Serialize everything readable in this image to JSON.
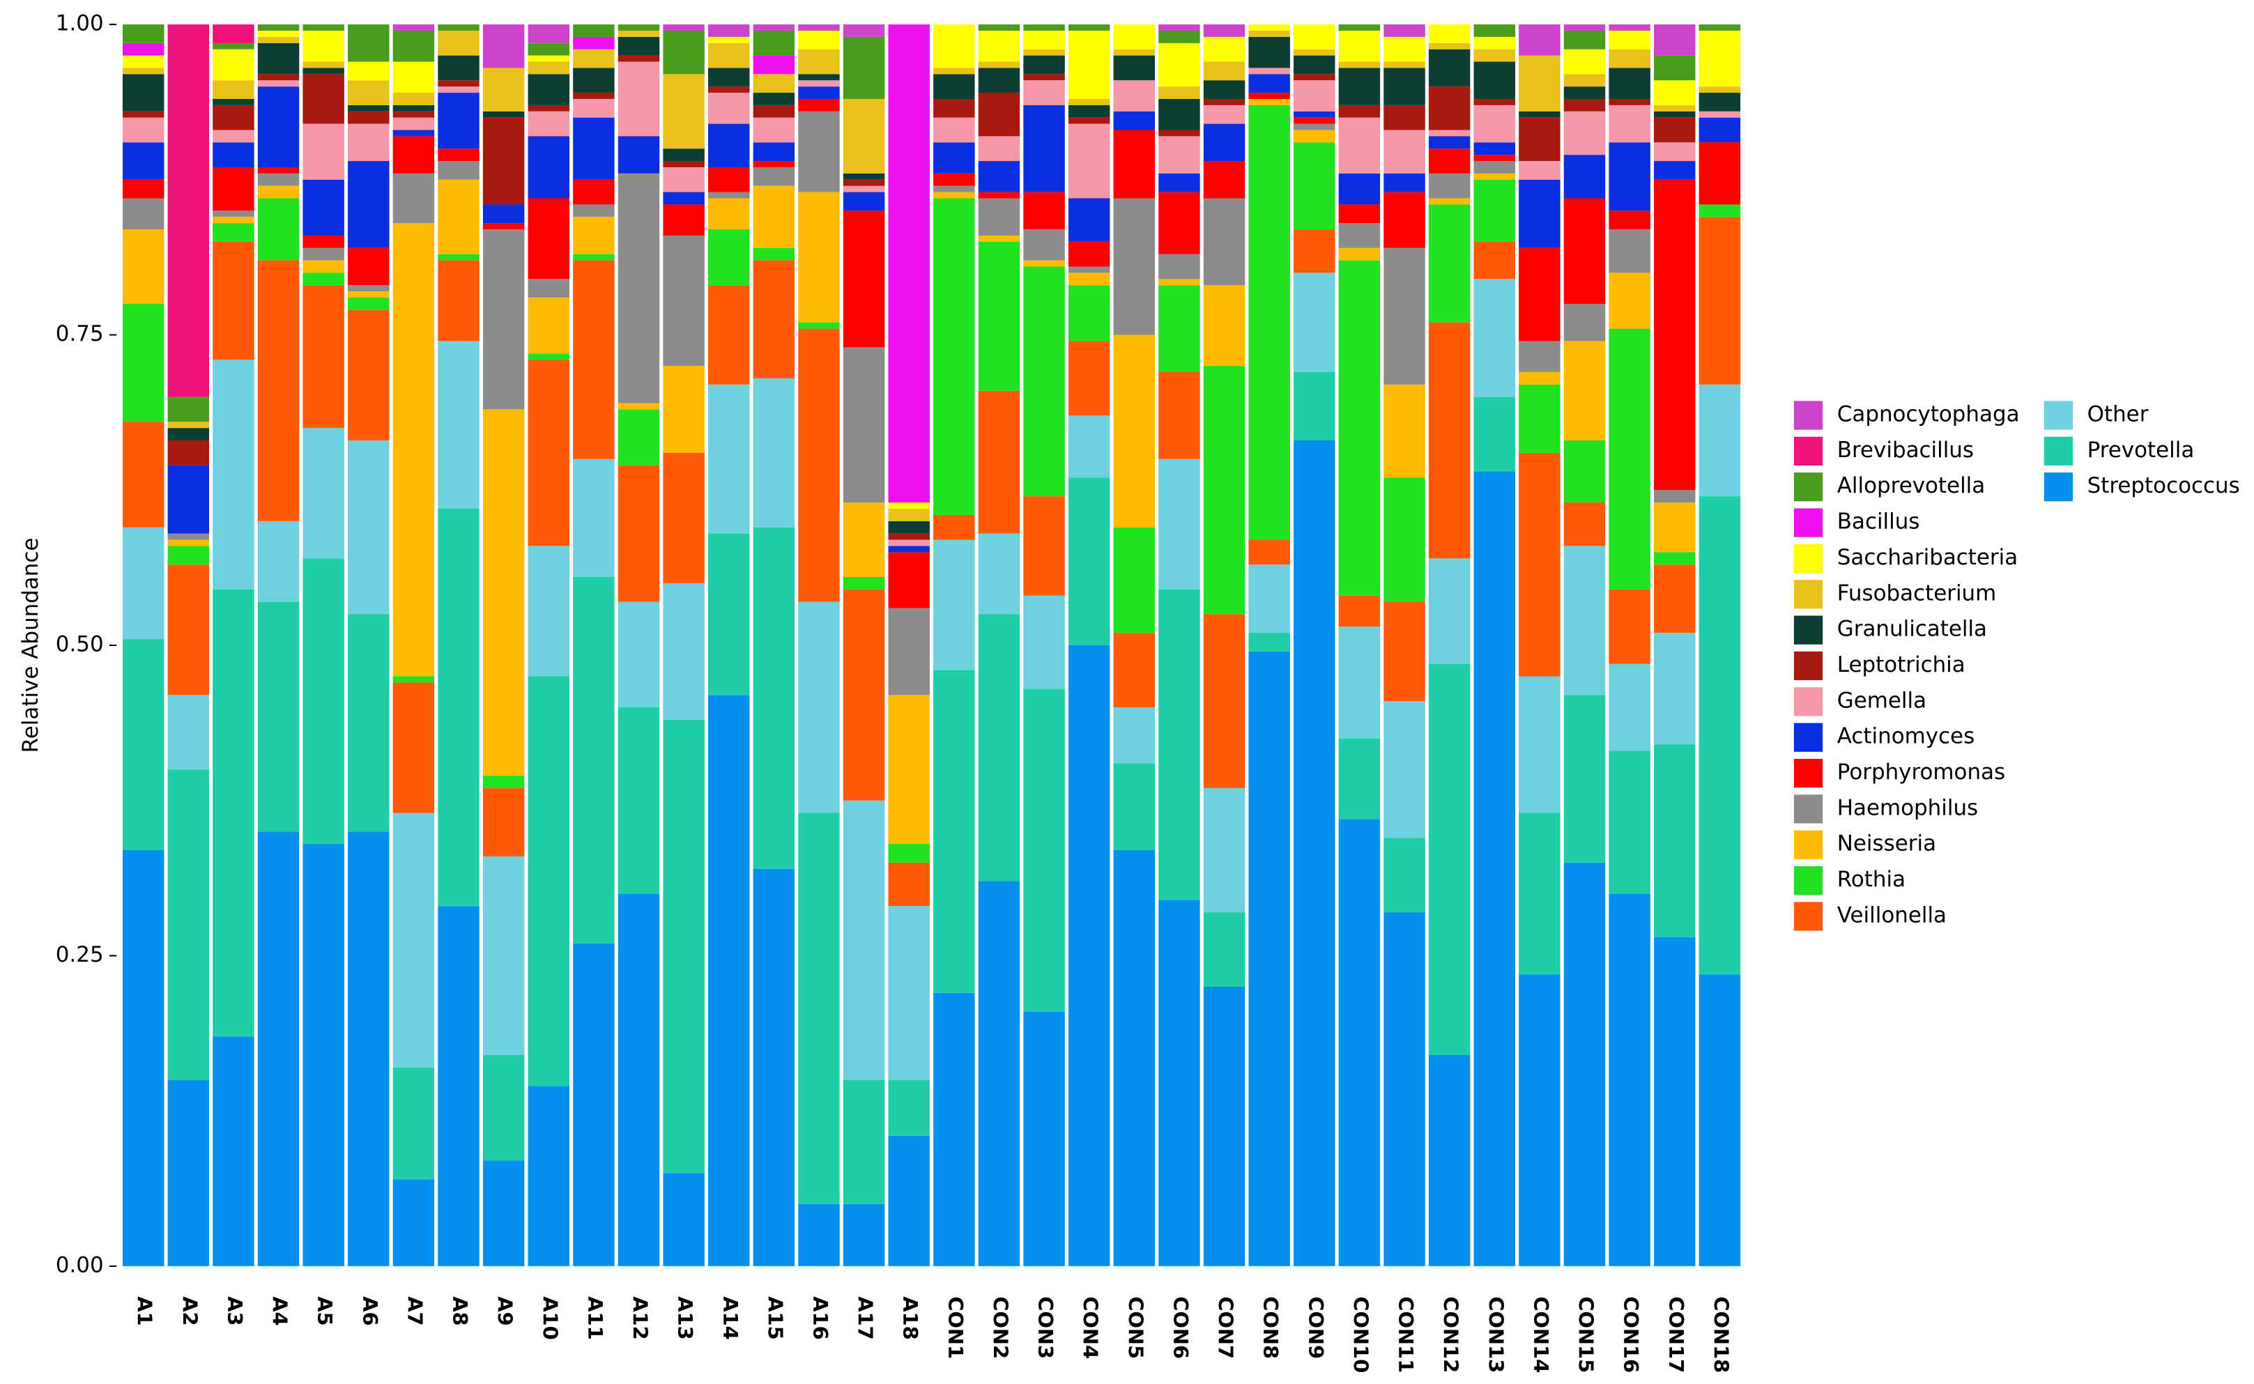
{
  "chart_data": {
    "type": "stacked_bar",
    "y_label": "Relative Abundance",
    "ylim": [
      0,
      1
    ],
    "yticks": [
      {
        "value": 0,
        "label": "0.00"
      },
      {
        "value": 0.25,
        "label": "0.25"
      },
      {
        "value": 0.5,
        "label": "0.50"
      },
      {
        "value": 0.75,
        "label": "0.75"
      },
      {
        "value": 1,
        "label": "1.00"
      }
    ],
    "categories": [
      "A1",
      "A2",
      "A3",
      "A4",
      "A5",
      "A6",
      "A7",
      "A8",
      "A9",
      "A10",
      "A11",
      "A12",
      "A13",
      "A14",
      "A15",
      "A16",
      "A17",
      "A18",
      "CON1",
      "CON2",
      "CON3",
      "CON4",
      "CON5",
      "CON6",
      "CON7",
      "CON8",
      "CON9",
      "CON10",
      "CON11",
      "CON12",
      "CON13",
      "CON14",
      "CON15",
      "CON16",
      "CON17",
      "CON18"
    ],
    "series": [
      {
        "name": "Capnocytophaga",
        "color": "#cc44cc",
        "values": [
          0,
          0,
          0,
          0,
          0,
          0,
          0.005,
          0,
          0.035,
          0.015,
          0,
          0,
          0.005,
          0.01,
          0.005,
          0.005,
          0.01,
          0,
          0,
          0,
          0,
          0,
          0,
          0.005,
          0.01,
          0,
          0,
          0,
          0.01,
          0,
          0,
          0.025,
          0.005,
          0.005,
          0.025,
          0
        ]
      },
      {
        "name": "Brevibacillus",
        "color": "#f0127a",
        "values": [
          0,
          0.3,
          0.015,
          0,
          0,
          0,
          0,
          0,
          0,
          0,
          0,
          0,
          0,
          0,
          0,
          0,
          0,
          0,
          0,
          0,
          0,
          0,
          0,
          0,
          0,
          0,
          0,
          0,
          0,
          0,
          0,
          0,
          0,
          0,
          0,
          0
        ]
      },
      {
        "name": "Alloprevotella",
        "color": "#4a9c1c",
        "values": [
          0.015,
          0.02,
          0.005,
          0.005,
          0.005,
          0.03,
          0.025,
          0.005,
          0,
          0.01,
          0.01,
          0.005,
          0.035,
          0,
          0.02,
          0,
          0.05,
          0,
          0,
          0.005,
          0.005,
          0.005,
          0,
          0.01,
          0,
          0,
          0,
          0.005,
          0,
          0,
          0.01,
          0,
          0.015,
          0,
          0.02,
          0.005
        ]
      },
      {
        "name": "Bacillus",
        "color": "#ee11ee",
        "values": [
          0.01,
          0,
          0,
          0,
          0,
          0,
          0,
          0,
          0,
          0,
          0.01,
          0,
          0,
          0,
          0.015,
          0,
          0,
          0.385,
          0,
          0,
          0,
          0,
          0,
          0,
          0,
          0,
          0,
          0,
          0,
          0,
          0,
          0,
          0,
          0,
          0,
          0
        ]
      },
      {
        "name": "Saccharibacteria",
        "color": "#ffff00",
        "values": [
          0.01,
          0,
          0.025,
          0.005,
          0.025,
          0.015,
          0.025,
          0,
          0,
          0.005,
          0,
          0,
          0,
          0.005,
          0,
          0.015,
          0,
          0.005,
          0.035,
          0.025,
          0.015,
          0.055,
          0.02,
          0.035,
          0.02,
          0.005,
          0.02,
          0.025,
          0.02,
          0.015,
          0.01,
          0,
          0.02,
          0.015,
          0.02,
          0.045
        ]
      },
      {
        "name": "Fusobacterium",
        "color": "#e8c21a",
        "values": [
          0.005,
          0.005,
          0.015,
          0.005,
          0.005,
          0.02,
          0.01,
          0.02,
          0.035,
          0.01,
          0.015,
          0.005,
          0.06,
          0.02,
          0.015,
          0.02,
          0.06,
          0.01,
          0.005,
          0.005,
          0.005,
          0.005,
          0.005,
          0.01,
          0.015,
          0.005,
          0.005,
          0.005,
          0.005,
          0.005,
          0.01,
          0.045,
          0.01,
          0.015,
          0.005,
          0.005
        ]
      },
      {
        "name": "Granulicatella",
        "color": "#0d3d33",
        "values": [
          0.03,
          0.01,
          0.005,
          0.025,
          0.005,
          0.005,
          0.005,
          0.02,
          0.005,
          0.025,
          0.02,
          0.015,
          0.01,
          0.015,
          0.01,
          0.005,
          0.005,
          0.01,
          0.02,
          0.02,
          0.015,
          0.01,
          0.02,
          0.025,
          0.015,
          0.025,
          0.015,
          0.03,
          0.03,
          0.03,
          0.03,
          0.005,
          0.01,
          0.025,
          0.005,
          0.015
        ]
      },
      {
        "name": "Leptotrichia",
        "color": "#a81a10",
        "values": [
          0.005,
          0.02,
          0.02,
          0.005,
          0.04,
          0.01,
          0.005,
          0.005,
          0.07,
          0.005,
          0.005,
          0.005,
          0.005,
          0.005,
          0.01,
          0,
          0.005,
          0.005,
          0.015,
          0.035,
          0.005,
          0.005,
          0,
          0.005,
          0.005,
          0,
          0.005,
          0.01,
          0.02,
          0.035,
          0.005,
          0.035,
          0.01,
          0.005,
          0.02,
          0
        ]
      },
      {
        "name": "Gemella",
        "color": "#f497a8",
        "values": [
          0.02,
          0,
          0.01,
          0.005,
          0.045,
          0.03,
          0.01,
          0.005,
          0,
          0.02,
          0.015,
          0.06,
          0.02,
          0.025,
          0.02,
          0.005,
          0.005,
          0.005,
          0.02,
          0.02,
          0.02,
          0.06,
          0.025,
          0.03,
          0.015,
          0.005,
          0.025,
          0.045,
          0.035,
          0.005,
          0.03,
          0.015,
          0.035,
          0.03,
          0.015,
          0.005
        ]
      },
      {
        "name": "Actinomyces",
        "color": "#0a2ee0",
        "values": [
          0.03,
          0.055,
          0.02,
          0.065,
          0.045,
          0.07,
          0.005,
          0.045,
          0.015,
          0.05,
          0.05,
          0.03,
          0.01,
          0.035,
          0.015,
          0.01,
          0.015,
          0.005,
          0.025,
          0.025,
          0.07,
          0.035,
          0.015,
          0.015,
          0.03,
          0.015,
          0.005,
          0.025,
          0.015,
          0.01,
          0.01,
          0.055,
          0.035,
          0.055,
          0.015,
          0.02
        ]
      },
      {
        "name": "Porphyromonas",
        "color": "#ff0000",
        "values": [
          0.015,
          0,
          0.035,
          0.005,
          0.01,
          0.03,
          0.03,
          0.01,
          0.005,
          0.065,
          0.02,
          0,
          0.025,
          0.02,
          0.005,
          0.01,
          0.11,
          0.045,
          0.01,
          0.005,
          0.03,
          0.02,
          0.055,
          0.05,
          0.03,
          0.005,
          0.005,
          0.015,
          0.045,
          0.02,
          0.005,
          0.075,
          0.085,
          0.015,
          0.25,
          0.05
        ]
      },
      {
        "name": "Haemophilus",
        "color": "#8c8c8c",
        "values": [
          0.025,
          0.005,
          0.005,
          0.01,
          0.01,
          0.005,
          0.04,
          0.015,
          0.145,
          0.015,
          0.01,
          0.185,
          0.105,
          0.005,
          0.015,
          0.065,
          0.125,
          0.07,
          0.005,
          0.03,
          0.025,
          0.005,
          0.11,
          0.02,
          0.07,
          0,
          0.005,
          0.02,
          0.11,
          0.02,
          0.01,
          0.025,
          0.03,
          0.035,
          0.01,
          0
        ]
      },
      {
        "name": "Neisseria",
        "color": "#ffbb00",
        "values": [
          0.06,
          0.005,
          0.005,
          0.01,
          0.01,
          0.005,
          0.365,
          0.06,
          0.295,
          0.045,
          0.03,
          0.005,
          0.07,
          0.025,
          0.05,
          0.105,
          0.06,
          0.12,
          0.005,
          0.005,
          0.005,
          0.01,
          0.155,
          0.005,
          0.065,
          0.005,
          0.01,
          0.01,
          0.075,
          0.005,
          0.005,
          0.01,
          0.08,
          0.045,
          0.04,
          0
        ]
      },
      {
        "name": "Rothia",
        "color": "#22e022",
        "values": [
          0.095,
          0.015,
          0.015,
          0.05,
          0.01,
          0.01,
          0.005,
          0.005,
          0.01,
          0.005,
          0.005,
          0.045,
          0,
          0.045,
          0.01,
          0.005,
          0.01,
          0.015,
          0.255,
          0.12,
          0.185,
          0.045,
          0.085,
          0.07,
          0.2,
          0.35,
          0.07,
          0.27,
          0.1,
          0.095,
          0.05,
          0.055,
          0.05,
          0.21,
          0.01,
          0.01
        ]
      },
      {
        "name": "Veillonella",
        "color": "#ff5a0a",
        "values": [
          0.085,
          0.105,
          0.095,
          0.21,
          0.115,
          0.105,
          0.105,
          0.065,
          0.055,
          0.15,
          0.16,
          0.11,
          0.105,
          0.08,
          0.095,
          0.22,
          0.17,
          0.035,
          0.02,
          0.115,
          0.08,
          0.06,
          0.06,
          0.07,
          0.14,
          0.02,
          0.035,
          0.025,
          0.08,
          0.19,
          0.03,
          0.18,
          0.035,
          0.06,
          0.055,
          0.135
        ]
      },
      {
        "name": "Other",
        "color": "#6fd0e0",
        "values": [
          0.09,
          0.06,
          0.185,
          0.065,
          0.105,
          0.14,
          0.205,
          0.135,
          0.16,
          0.105,
          0.095,
          0.085,
          0.11,
          0.12,
          0.12,
          0.17,
          0.225,
          0.14,
          0.105,
          0.065,
          0.075,
          0.05,
          0.045,
          0.105,
          0.1,
          0.055,
          0.08,
          0.09,
          0.11,
          0.085,
          0.095,
          0.11,
          0.12,
          0.07,
          0.09,
          0.09
        ]
      },
      {
        "name": "Prevotella",
        "color": "#1fcda6",
        "values": [
          0.17,
          0.25,
          0.36,
          0.185,
          0.23,
          0.175,
          0.09,
          0.32,
          0.085,
          0.33,
          0.295,
          0.15,
          0.365,
          0.13,
          0.275,
          0.315,
          0.1,
          0.045,
          0.26,
          0.215,
          0.26,
          0.135,
          0.07,
          0.25,
          0.06,
          0.015,
          0.055,
          0.065,
          0.06,
          0.315,
          0.06,
          0.13,
          0.135,
          0.115,
          0.155,
          0.385
        ]
      },
      {
        "name": "Streptococcus",
        "color": "#0590f0",
        "values": [
          0.335,
          0.15,
          0.185,
          0.35,
          0.34,
          0.35,
          0.07,
          0.29,
          0.085,
          0.145,
          0.26,
          0.3,
          0.075,
          0.46,
          0.32,
          0.05,
          0.05,
          0.105,
          0.22,
          0.31,
          0.205,
          0.5,
          0.335,
          0.295,
          0.225,
          0.495,
          0.665,
          0.36,
          0.285,
          0.17,
          0.64,
          0.235,
          0.325,
          0.3,
          0.265,
          0.235
        ]
      }
    ]
  }
}
